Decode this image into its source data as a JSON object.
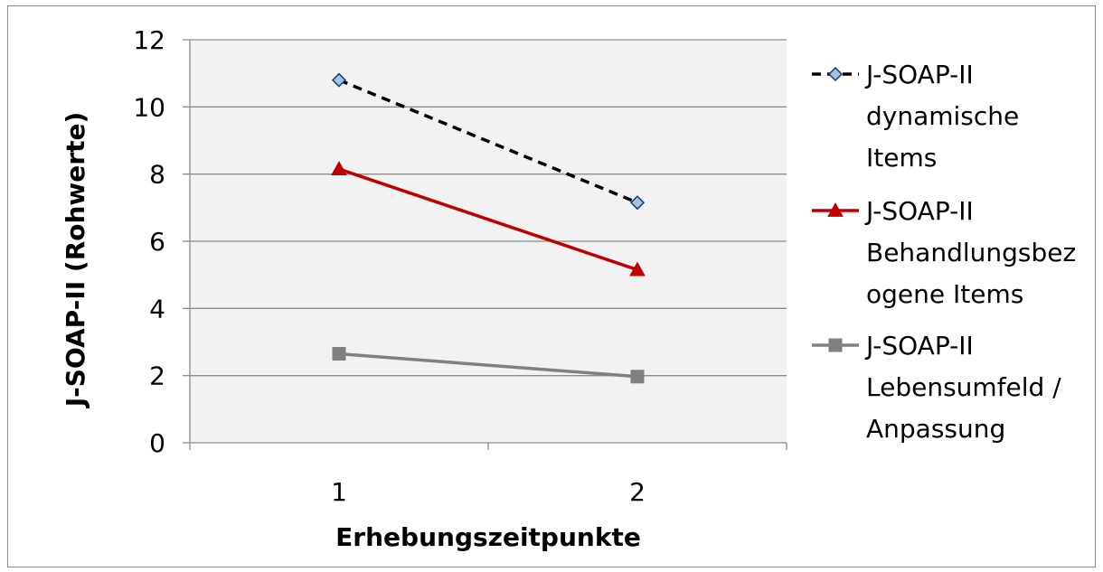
{
  "chart_data": {
    "type": "line",
    "title": "",
    "xlabel": "Erhebungszeitpunkte",
    "ylabel": "J-SOAP-II (Rohwerte)",
    "categories": [
      "1",
      "2"
    ],
    "ylim": [
      0,
      12
    ],
    "yticks": [
      0,
      2,
      4,
      6,
      8,
      10,
      12
    ],
    "grid": true,
    "legend_position": "right",
    "series": [
      {
        "name": "J-SOAP-II dynamische Items",
        "name_lines": [
          "J-SOAP-II",
          "dynamische",
          "Items"
        ],
        "values": [
          10.8,
          7.15
        ],
        "color": "#000000",
        "line_style": "dashed",
        "marker": "diamond",
        "marker_fill": "#9dc3e6",
        "marker_stroke": "#1f3864"
      },
      {
        "name": "J-SOAP-II Behandlungsbezogene Items",
        "name_lines": [
          "J-SOAP-II",
          "Behandlungsbez",
          "ogene Items"
        ],
        "values": [
          8.15,
          5.15
        ],
        "color": "#c00000",
        "line_style": "solid",
        "marker": "triangle",
        "marker_fill": "#c00000",
        "marker_stroke": "#c00000"
      },
      {
        "name": "J-SOAP-II Lebensumfeld / Anpassung",
        "name_lines": [
          "J-SOAP-II",
          "Lebensumfeld /",
          "Anpassung"
        ],
        "values": [
          2.65,
          1.97
        ],
        "color": "#808080",
        "line_style": "solid",
        "marker": "square",
        "marker_fill": "#808080",
        "marker_stroke": "#808080"
      }
    ],
    "colors": {
      "plot_background": "#f2f2f2",
      "gridline": "#8c8c8c",
      "axis": "#8c8c8c",
      "frame": "#8c8c8c"
    }
  }
}
